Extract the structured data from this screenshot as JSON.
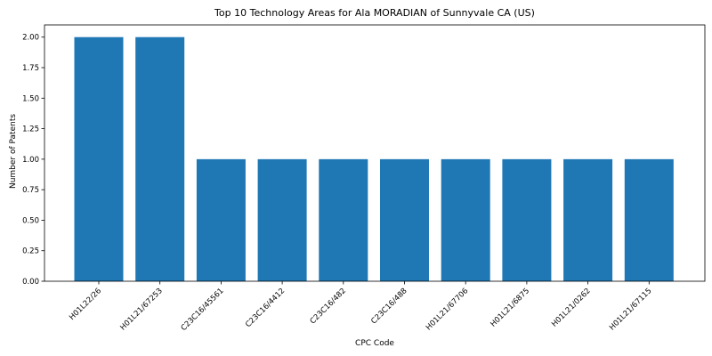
{
  "chart_data": {
    "type": "bar",
    "title": "Top 10 Technology Areas for Ala MORADIAN of Sunnyvale CA (US)",
    "xlabel": "CPC Code",
    "ylabel": "Number of Patents",
    "categories": [
      "H01L22/26",
      "H01L21/67253",
      "C23C16/45561",
      "C23C16/4412",
      "C23C16/482",
      "C23C16/488",
      "H01L21/67706",
      "H01L21/6875",
      "H01L21/0262",
      "H01L21/67115"
    ],
    "values": [
      2,
      2,
      1,
      1,
      1,
      1,
      1,
      1,
      1,
      1
    ],
    "ylim": [
      0,
      2.1
    ],
    "yticks": [
      "0.00",
      "0.25",
      "0.50",
      "0.75",
      "1.00",
      "1.25",
      "1.50",
      "1.75",
      "2.00"
    ],
    "bar_color": "#1f77b4",
    "grid": false,
    "legend": "none"
  }
}
